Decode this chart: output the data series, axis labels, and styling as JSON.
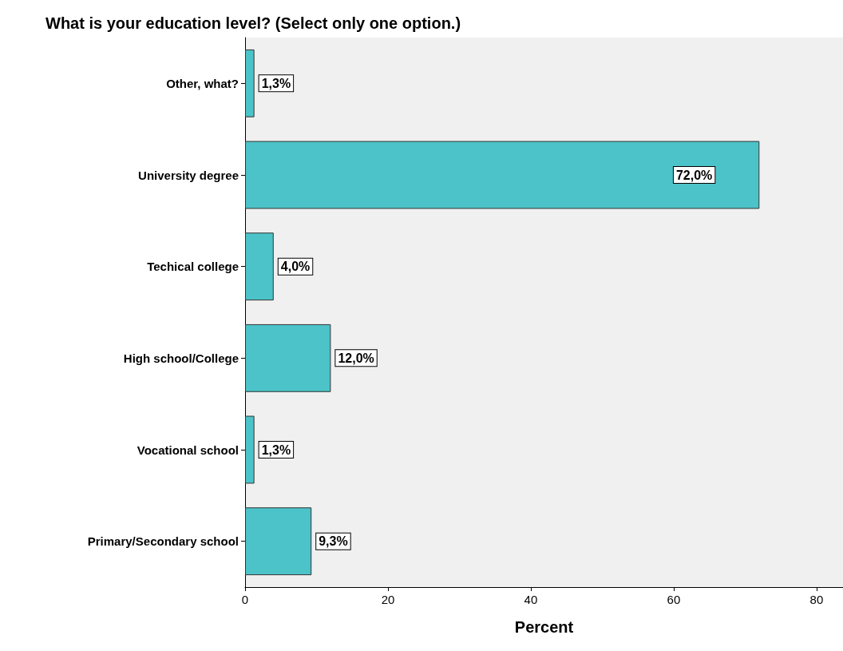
{
  "chart_data": {
    "type": "bar",
    "orientation": "horizontal",
    "title": "What is your education level? (Select only one option.)",
    "categories": [
      "Other, what?",
      "University degree",
      "Techical college",
      "High school/College",
      "Vocational school",
      "Primary/Secondary school"
    ],
    "values": [
      1.3,
      72.0,
      4.0,
      12.0,
      1.3,
      9.3
    ],
    "value_labels": [
      "1,3%",
      "72,0%",
      "4,0%",
      "12,0%",
      "1,3%",
      "9,3%"
    ],
    "color": "#4cc3c8",
    "xlabel": "Percent",
    "xlim": [
      0,
      83.7
    ],
    "xticks": [
      0,
      20,
      40,
      60,
      80
    ],
    "grid": false
  }
}
